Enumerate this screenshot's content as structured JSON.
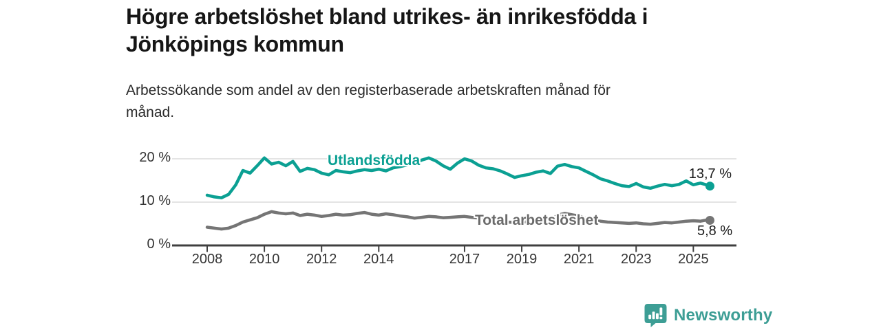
{
  "header": {
    "title_line1": "Högre arbetslöshet bland utrikes- än inrikesfödda i",
    "title_line2": "Jönköpings kommun",
    "subtitle_line1": "Arbetssökande som andel av den registerbaserade arbetskraften månad för",
    "subtitle_line2": "månad."
  },
  "chart_data": {
    "type": "line",
    "title": "Högre arbetslöshet bland utrikes- än inrikesfödda i Jönköpings kommun",
    "subtitle": "Arbetssökande som andel av den registerbaserade arbetskraften månad för månad.",
    "grid": "horizontal",
    "legend": "inline-labels",
    "y_axis": {
      "unit": "%",
      "range": [
        0,
        21
      ],
      "ticks": [
        {
          "label": "0 %",
          "value": 0
        },
        {
          "label": "10 %",
          "value": 10
        },
        {
          "label": "20 %",
          "value": 20
        }
      ]
    },
    "x_axis": {
      "range": [
        2006.8,
        2026.5
      ],
      "ticks": [
        {
          "label": "2008",
          "value": 2008
        },
        {
          "label": "2010",
          "value": 2010
        },
        {
          "label": "2012",
          "value": 2012
        },
        {
          "label": "2014",
          "value": 2014
        },
        {
          "label": "2017",
          "value": 2017
        },
        {
          "label": "2019",
          "value": 2019
        },
        {
          "label": "2021",
          "value": 2021
        },
        {
          "label": "2023",
          "value": 2023
        },
        {
          "label": "2025",
          "value": 2025
        }
      ]
    },
    "x": [
      2008.0,
      2008.25,
      2008.5,
      2008.75,
      2009.0,
      2009.25,
      2009.5,
      2009.75,
      2010.0,
      2010.25,
      2010.5,
      2010.75,
      2011.0,
      2011.25,
      2011.5,
      2011.75,
      2012.0,
      2012.25,
      2012.5,
      2012.75,
      2013.0,
      2013.25,
      2013.5,
      2013.75,
      2014.0,
      2014.25,
      2014.5,
      2014.75,
      2015.0,
      2015.25,
      2015.5,
      2015.75,
      2016.0,
      2016.25,
      2016.5,
      2016.75,
      2017.0,
      2017.25,
      2017.5,
      2017.75,
      2018.0,
      2018.25,
      2018.5,
      2018.75,
      2019.0,
      2019.25,
      2019.5,
      2019.75,
      2020.0,
      2020.25,
      2020.5,
      2020.75,
      2021.0,
      2021.25,
      2021.5,
      2021.75,
      2022.0,
      2022.25,
      2022.5,
      2022.75,
      2023.0,
      2023.25,
      2023.5,
      2023.75,
      2024.0,
      2024.25,
      2024.5,
      2024.75,
      2025.0,
      2025.25,
      2025.5,
      2025.58
    ],
    "series": [
      {
        "name": "Utlandsfödda",
        "color": "#0ba093",
        "end_label": "13,7 %",
        "end_value": 13.7,
        "values": [
          11.6,
          11.2,
          11.0,
          11.8,
          14.0,
          17.3,
          16.7,
          18.4,
          20.2,
          18.8,
          19.2,
          18.4,
          19.4,
          17.1,
          17.8,
          17.5,
          16.7,
          16.3,
          17.3,
          17.0,
          16.8,
          17.2,
          17.5,
          17.3,
          17.6,
          17.2,
          17.9,
          18.2,
          18.6,
          19.0,
          19.7,
          20.2,
          19.5,
          18.4,
          17.6,
          19.0,
          20.0,
          19.5,
          18.5,
          17.9,
          17.7,
          17.2,
          16.5,
          15.7,
          16.1,
          16.4,
          16.9,
          17.2,
          16.6,
          18.3,
          18.7,
          18.2,
          17.9,
          17.1,
          16.3,
          15.4,
          14.9,
          14.3,
          13.8,
          13.6,
          14.3,
          13.5,
          13.2,
          13.7,
          14.1,
          13.8,
          14.1,
          14.9,
          14.0,
          14.4,
          13.9,
          13.7
        ]
      },
      {
        "name": "Total arbetslöshet",
        "color": "#757575",
        "end_label": "5,8 %",
        "end_value": 5.8,
        "values": [
          4.2,
          4.0,
          3.8,
          4.0,
          4.6,
          5.4,
          5.9,
          6.4,
          7.2,
          7.8,
          7.5,
          7.3,
          7.5,
          6.9,
          7.2,
          7.0,
          6.7,
          6.9,
          7.2,
          7.0,
          7.1,
          7.4,
          7.6,
          7.2,
          7.0,
          7.3,
          7.1,
          6.8,
          6.6,
          6.3,
          6.5,
          6.7,
          6.6,
          6.4,
          6.5,
          6.6,
          6.7,
          6.5,
          6.3,
          6.0,
          5.8,
          5.6,
          5.4,
          5.3,
          5.4,
          5.5,
          5.6,
          5.7,
          5.7,
          7.0,
          7.4,
          7.1,
          6.8,
          6.3,
          5.9,
          5.6,
          5.4,
          5.3,
          5.2,
          5.1,
          5.2,
          5.0,
          4.9,
          5.1,
          5.3,
          5.2,
          5.4,
          5.6,
          5.7,
          5.6,
          5.9,
          5.8
        ]
      }
    ]
  },
  "footer": {
    "brand": "Newsworthy",
    "brand_color": "#3d9e95"
  },
  "colors": {
    "accent_teal": "#0ba093",
    "line_gray": "#757575",
    "grid": "#dcdcdc",
    "axis": "#3f3f3f",
    "text_dark": "#161616"
  }
}
